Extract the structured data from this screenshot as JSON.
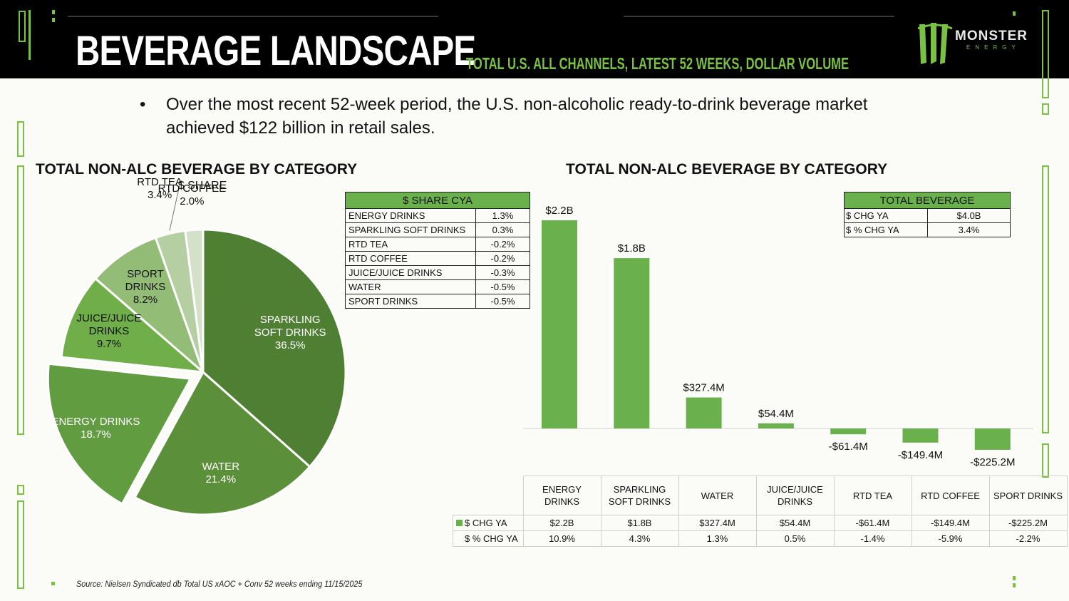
{
  "header": {
    "title": "BEVERAGE LANDSCAPE",
    "subtitle": "TOTAL U.S. ALL CHANNELS, LATEST 52 WEEKS, DOLLAR VOLUME",
    "logo_word": "MONSTER",
    "logo_sub": "ENERGY"
  },
  "bullet": {
    "mark": "•",
    "text": "Over the most recent 52-week period, the U.S. non-alcoholic ready-to-drink beverage market achieved $122 billion in retail sales."
  },
  "left_section": {
    "title": "TOTAL NON-ALC BEVERAGE BY CATEGORY",
    "pie_title": "$ SHARE"
  },
  "right_section": {
    "title": "TOTAL NON-ALC BEVERAGE BY CATEGORY"
  },
  "share_cya_table": {
    "header": "$ SHARE CYA",
    "rows": [
      {
        "label": "ENERGY DRINKS",
        "value": "1.3%"
      },
      {
        "label": "SPARKLING SOFT DRINKS",
        "value": "0.3%"
      },
      {
        "label": "RTD TEA",
        "value": "-0.2%"
      },
      {
        "label": "RTD COFFEE",
        "value": "-0.2%"
      },
      {
        "label": "JUICE/JUICE DRINKS",
        "value": "-0.3%"
      },
      {
        "label": "WATER",
        "value": "-0.5%"
      },
      {
        "label": "SPORT DRINKS",
        "value": "-0.5%"
      }
    ]
  },
  "total_beverage_table": {
    "header": "TOTAL BEVERAGE",
    "rows": [
      {
        "label": "$ CHG YA",
        "value": "$4.0B"
      },
      {
        "label": "$ % CHG YA",
        "value": "3.4%"
      }
    ]
  },
  "data_table": {
    "columns": [
      "ENERGY DRINKS",
      "SPARKLING SOFT DRINKS",
      "WATER",
      "JUICE/JUICE DRINKS",
      "RTD TEA",
      "RTD COFFEE",
      "SPORT DRINKS"
    ],
    "row1_label": "$ CHG YA",
    "row1": [
      "$2.2B",
      "$1.8B",
      "$327.4M",
      "$54.4M",
      "-$61.4M",
      "-$149.4M",
      "-$225.2M"
    ],
    "row2_label": "$ % CHG YA",
    "row2": [
      "10.9%",
      "4.3%",
      "1.3%",
      "0.5%",
      "-1.4%",
      "-5.9%",
      "-2.2%"
    ]
  },
  "source": "Source: Nielsen Syndicated db Total US xAOC + Conv 52 weeks ending 11/15/2025",
  "colors": {
    "brand_green": "#7ac143",
    "bar_green": "#6ab04c",
    "header_bg": "#000000"
  },
  "chart_data": [
    {
      "type": "pie",
      "title": "$ SHARE",
      "slices": [
        {
          "label": "SPARKLING SOFT DRINKS",
          "value": 36.5,
          "display": "36.5%",
          "color": "#4f7f33",
          "exploded": false
        },
        {
          "label": "WATER",
          "value": 21.4,
          "display": "21.4%",
          "color": "#5b8f3a",
          "exploded": false
        },
        {
          "label": "ENERGY DRINKS",
          "value": 18.7,
          "display": "18.7%",
          "color": "#629c41",
          "exploded": true
        },
        {
          "label": "JUICE/JUICE DRINKS",
          "value": 9.7,
          "display": "9.7%",
          "color": "#6fae49",
          "exploded": false
        },
        {
          "label": "SPORT DRINKS",
          "value": 8.2,
          "display": "8.2%",
          "color": "#93bd76",
          "exploded": false
        },
        {
          "label": "RTD TEA",
          "value": 3.4,
          "display": "3.4%",
          "color": "#b5cfa3",
          "exploded": false
        },
        {
          "label": "RTD COFFEE",
          "value": 2.0,
          "display": "2.0%",
          "color": "#d3e1c8",
          "exploded": false
        }
      ]
    },
    {
      "type": "bar",
      "title": "TOTAL NON-ALC BEVERAGE BY CATEGORY",
      "unit": "$M",
      "categories": [
        "ENERGY DRINKS",
        "SPARKLING SOFT DRINKS",
        "WATER",
        "JUICE/JUICE DRINKS",
        "RTD TEA",
        "RTD COFFEE",
        "SPORT DRINKS"
      ],
      "series": [
        {
          "name": "$ CHG YA",
          "values": [
            2200,
            1800,
            327.4,
            54.4,
            -61.4,
            -149.4,
            -225.2
          ],
          "labels": [
            "$2.2B",
            "$1.8B",
            "$327.4M",
            "$54.4M",
            "-$61.4M",
            "-$149.4M",
            "-$225.2M"
          ]
        }
      ]
    }
  ]
}
